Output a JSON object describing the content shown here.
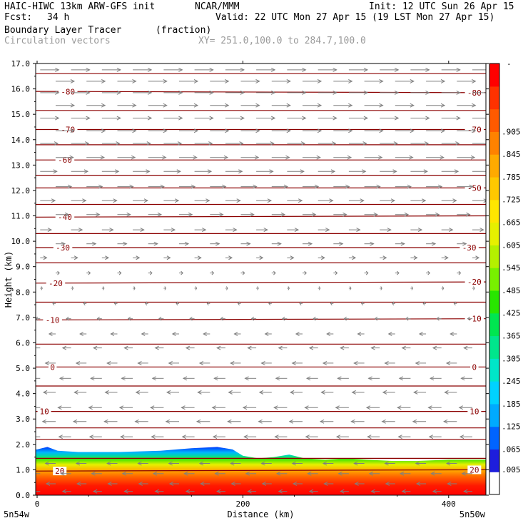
{
  "header": {
    "model": "HAIC-HIWC 13km ARW-GFS init",
    "org": "NCAR/MMM",
    "init": "Init: 12 UTC Sun 26 Apr 15",
    "fcst_label": "Fcst:",
    "fcst_value": "34 h",
    "valid": "Valid: 22 UTC Mon 27 Apr 15 (19 LST Mon 27 Apr 15)",
    "field": "Boundary Layer Tracer",
    "field_units": "(fraction)",
    "overlay": "Circulation vectors",
    "xy": "XY= 251.0,100.0 to 284.7,100.0"
  },
  "chart_data": {
    "type": "cross-section",
    "title": "Boundary Layer Tracer",
    "units": "(fraction)",
    "xlabel": "Distance (km)",
    "ylabel": "Height (km)",
    "xlim": [
      0,
      435
    ],
    "ylim": [
      0,
      17
    ],
    "x_ticks": [
      0,
      200,
      400
    ],
    "x_tick_labels": [
      "0",
      "200",
      "400"
    ],
    "y_ticks": [
      0,
      1,
      2,
      3,
      4,
      5,
      6,
      7,
      8,
      9,
      10,
      11,
      12,
      13,
      14,
      15,
      16,
      17
    ],
    "y_tick_labels": [
      "0.0",
      "1.0",
      "2.0",
      "3.0",
      "4.0",
      "5.0",
      "6.0",
      "7.0",
      "8.0",
      "9.0",
      "10.0",
      "11.0",
      "12.0",
      "13.0",
      "14.0",
      "15.0",
      "16.0",
      "17.0"
    ],
    "x_endpoint_labels": [
      "5n54w",
      "5n50w"
    ],
    "colorbar": {
      "labels": [
        ".005",
        ".065",
        ".125",
        ".185",
        ".245",
        ".305",
        ".365",
        ".425",
        ".485",
        ".545",
        ".605",
        ".665",
        ".725",
        ".785",
        ".845",
        ".905"
      ],
      "top_label": "-",
      "colors": [
        "#ffffff",
        "#1e1edc",
        "#0064ff",
        "#00aaff",
        "#00d2ff",
        "#00e6c8",
        "#00e68c",
        "#00e650",
        "#28e600",
        "#78f000",
        "#b4f000",
        "#e6f000",
        "#ffe600",
        "#ffc800",
        "#ffaa00",
        "#ff8200",
        "#ff5a00",
        "#ff3200",
        "#ff0000"
      ]
    },
    "isotherm_color": "#8b0000",
    "isotherms": [
      {
        "label": "20",
        "z_left": 0.95,
        "z_right": 1.0,
        "label_left_x": 22,
        "label_right_x": 425
      },
      {
        "label": "10",
        "z_left": 3.3,
        "z_right": 3.3,
        "label_left_x": 7,
        "label_right_x": 425
      },
      {
        "label": "0",
        "z_left": 5.05,
        "z_right": 5.05,
        "label_left_x": 15,
        "label_right_x": 425
      },
      {
        "label": "-10",
        "z_left": 6.9,
        "z_right": 6.95,
        "label_left_x": 15,
        "label_right_x": 425
      },
      {
        "label": "-20",
        "z_left": 8.35,
        "z_right": 8.4,
        "label_left_x": 18,
        "label_right_x": 425
      },
      {
        "label": "-30",
        "z_left": 9.75,
        "z_right": 9.75,
        "label_left_x": 25,
        "label_right_x": 420
      },
      {
        "label": "-40",
        "z_left": 10.95,
        "z_right": 11.0,
        "label_left_x": 27,
        "label_right_x": null
      },
      {
        "label": "-50",
        "z_left": 12.1,
        "z_right": 12.1,
        "label_left_x": null,
        "label_right_x": 425
      },
      {
        "label": "-60",
        "z_left": 13.2,
        "z_right": 13.2,
        "label_left_x": 27,
        "label_right_x": null
      },
      {
        "label": "-70",
        "z_left": 14.4,
        "z_right": 14.4,
        "label_left_x": 30,
        "label_right_x": 425
      },
      {
        "label": "-80",
        "z_left": 15.9,
        "z_right": 15.85,
        "label_left_x": 30,
        "label_right_x": 425
      }
    ],
    "extra_isotherms_z": [
      1.45,
      2.2,
      2.65,
      4.3,
      5.95,
      7.6,
      9.15,
      10.3,
      11.45,
      12.6,
      13.8,
      15.15,
      16.6
    ],
    "boundary_layer_top": [
      [
        0,
        1.8
      ],
      [
        10,
        1.9
      ],
      [
        20,
        1.75
      ],
      [
        40,
        1.7
      ],
      [
        80,
        1.7
      ],
      [
        120,
        1.75
      ],
      [
        150,
        1.85
      ],
      [
        175,
        1.9
      ],
      [
        190,
        1.8
      ],
      [
        200,
        1.55
      ],
      [
        215,
        1.45
      ],
      [
        230,
        1.5
      ],
      [
        245,
        1.6
      ],
      [
        260,
        1.45
      ],
      [
        280,
        1.4
      ],
      [
        300,
        1.45
      ],
      [
        320,
        1.4
      ],
      [
        345,
        1.35
      ],
      [
        370,
        1.35
      ],
      [
        400,
        1.4
      ],
      [
        435,
        1.4
      ]
    ],
    "wind_rows": [
      {
        "z": 16.75,
        "dir": 1,
        "len": 1.0
      },
      {
        "z": 16.3,
        "dir": 1,
        "len": 1.0
      },
      {
        "z": 15.85,
        "dir": 1,
        "len": 1.0
      },
      {
        "z": 15.35,
        "dir": 1,
        "len": 1.0
      },
      {
        "z": 14.85,
        "dir": 1,
        "len": 1.0
      },
      {
        "z": 14.35,
        "dir": 1,
        "len": 1.0
      },
      {
        "z": 13.85,
        "dir": 1,
        "len": 0.95
      },
      {
        "z": 13.3,
        "dir": 1,
        "len": 0.95
      },
      {
        "z": 12.75,
        "dir": 1,
        "len": 0.9
      },
      {
        "z": 12.15,
        "dir": 1,
        "len": 0.85
      },
      {
        "z": 11.6,
        "dir": 1,
        "len": 0.8
      },
      {
        "z": 11.05,
        "dir": 1,
        "len": 0.7
      },
      {
        "z": 10.45,
        "dir": 1,
        "len": 0.6
      },
      {
        "z": 9.9,
        "dir": 1,
        "len": 0.5
      },
      {
        "z": 9.35,
        "dir": 1,
        "len": 0.35
      },
      {
        "z": 8.75,
        "dir": 1,
        "len": 0.2
      },
      {
        "z": 8.15,
        "dir": 1,
        "len": 0.05
      },
      {
        "z": 7.55,
        "dir": -1,
        "len": 0.15
      },
      {
        "z": 6.95,
        "dir": -1,
        "len": 0.25
      },
      {
        "z": 6.35,
        "dir": -1,
        "len": 0.35
      },
      {
        "z": 5.8,
        "dir": -1,
        "len": 0.45
      },
      {
        "z": 5.2,
        "dir": -1,
        "len": 0.55
      },
      {
        "z": 4.6,
        "dir": -1,
        "len": 0.6
      },
      {
        "z": 4.05,
        "dir": -1,
        "len": 0.65
      },
      {
        "z": 3.45,
        "dir": -1,
        "len": 0.7
      },
      {
        "z": 2.9,
        "dir": -1,
        "len": 0.7
      },
      {
        "z": 2.3,
        "dir": -1,
        "len": 0.65
      },
      {
        "z": 1.25,
        "dir": -1,
        "len": 0.55
      },
      {
        "z": 0.85,
        "dir": -1,
        "len": 0.55
      },
      {
        "z": 0.45,
        "dir": -1,
        "len": 0.5
      },
      {
        "z": 0.15,
        "dir": -1,
        "len": 0.45
      }
    ],
    "wind_x_spacing_km": 30
  }
}
